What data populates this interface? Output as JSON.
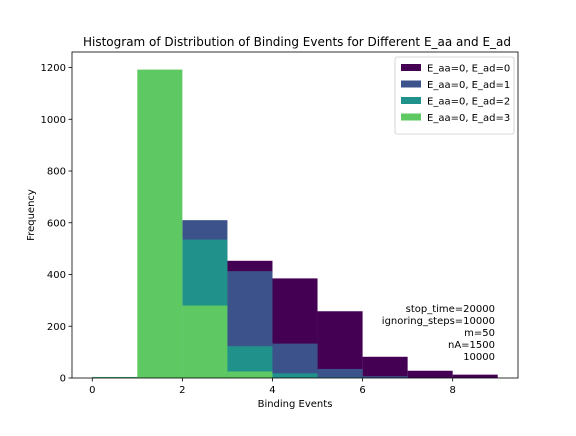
{
  "chart_data": {
    "type": "bar",
    "title": "Histogram of Distribution of Binding Events for Different E_aa and E_ad",
    "xlabel": "Binding Events",
    "ylabel": "Frequency",
    "xlim": [
      -0.45,
      9.45
    ],
    "ylim": [
      0,
      1260
    ],
    "xticks": [
      0,
      2,
      4,
      6,
      8
    ],
    "yticks": [
      0,
      200,
      400,
      600,
      800,
      1000,
      1200
    ],
    "bin_edges": [
      0,
      1,
      2,
      3,
      4,
      5,
      6,
      7,
      8,
      9
    ],
    "legend_position": "top-right",
    "series": [
      {
        "name": "E_aa=0, E_ad=0",
        "color": "#440154",
        "values": [
          0,
          0,
          0,
          453,
          385,
          258,
          82,
          28,
          13
        ]
      },
      {
        "name": "E_aa=0, E_ad=1",
        "color": "#3b528b",
        "values": [
          0,
          0,
          610,
          413,
          133,
          35,
          7,
          2,
          0
        ]
      },
      {
        "name": "E_aa=0, E_ad=2",
        "color": "#21918c",
        "values": [
          4,
          0,
          535,
          123,
          18,
          3,
          0,
          0,
          0
        ]
      },
      {
        "name": "E_aa=0, E_ad=3",
        "color": "#5ec962",
        "values": [
          3,
          1192,
          280,
          25,
          0,
          0,
          0,
          0,
          0
        ]
      }
    ],
    "annotation_lines": [
      "stop_time=20000",
      "ignoring_steps=10000",
      "m=50",
      "nA=1500",
      "10000"
    ]
  }
}
